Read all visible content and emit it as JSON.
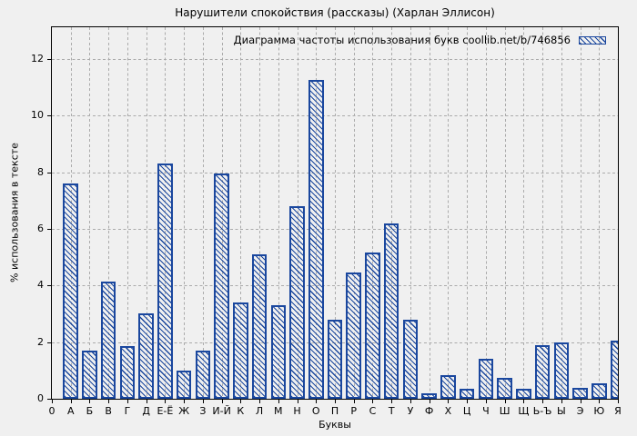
{
  "colors": {
    "background": "#f0f0f0",
    "bar_border": "#1a479e",
    "bar_hatch": "#1a479e",
    "grid": "#ababab",
    "frame": "#000000",
    "text": "#000000"
  },
  "chart_data": {
    "type": "bar",
    "title": "Нарушители спокойствия (рассказы) (Харлан Эллисон)",
    "legend": "Диаграмма частоты использования букв coollib.net/b/746856",
    "legend_position": "top-right-inside",
    "xlabel": "Буквы",
    "ylabel": "% использования в тексте",
    "origin_tick_label": "0",
    "categories": [
      "А",
      "Б",
      "В",
      "Г",
      "Д",
      "Е-Ё",
      "Ж",
      "З",
      "И-Й",
      "К",
      "Л",
      "М",
      "Н",
      "О",
      "П",
      "Р",
      "С",
      "Т",
      "У",
      "Ф",
      "Х",
      "Ц",
      "Ч",
      "Ш",
      "Щ",
      "Ь-Ъ",
      "Ы",
      "Э",
      "Ю",
      "Я"
    ],
    "values": [
      7.6,
      1.7,
      4.15,
      1.85,
      3.0,
      8.3,
      1.0,
      1.7,
      7.95,
      3.4,
      5.1,
      3.3,
      6.8,
      11.25,
      2.8,
      4.45,
      5.15,
      6.2,
      2.8,
      0.2,
      0.85,
      0.35,
      1.4,
      0.75,
      0.35,
      1.9,
      2.0,
      0.4,
      0.55,
      2.05
    ],
    "yticks": [
      0,
      2,
      4,
      6,
      8,
      10,
      12
    ],
    "ylim": [
      0,
      13.12
    ],
    "grid": true,
    "bar_style": "diagonal-hatch"
  }
}
